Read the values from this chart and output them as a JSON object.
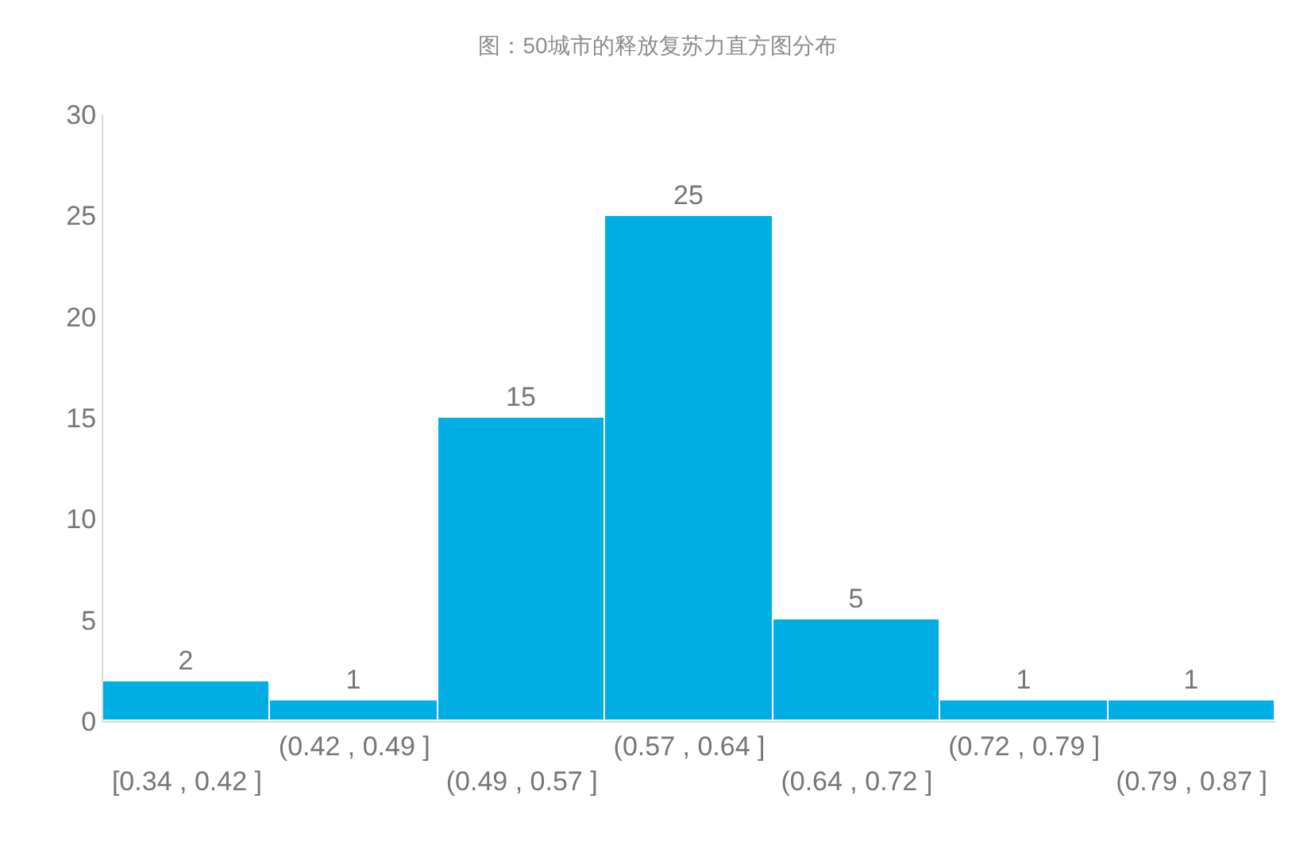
{
  "chart_data": {
    "type": "bar",
    "title": "图：50城市的释放复苏力直方图分布",
    "categories": [
      "[0.34 , 0.42 ]",
      "(0.42 , 0.49 ]",
      "(0.49 , 0.57 ]",
      "(0.57 , 0.64 ]",
      "(0.64 , 0.72 ]",
      "(0.72 , 0.79 ]",
      "(0.79 , 0.87 ]"
    ],
    "values": [
      2,
      1,
      15,
      25,
      5,
      1,
      1
    ],
    "color": "#00aee3",
    "ylim": [
      0,
      30
    ],
    "yticks": [
      0,
      5,
      10,
      15,
      20,
      25,
      30
    ],
    "grid": false,
    "data_labels": true,
    "legend": false
  }
}
